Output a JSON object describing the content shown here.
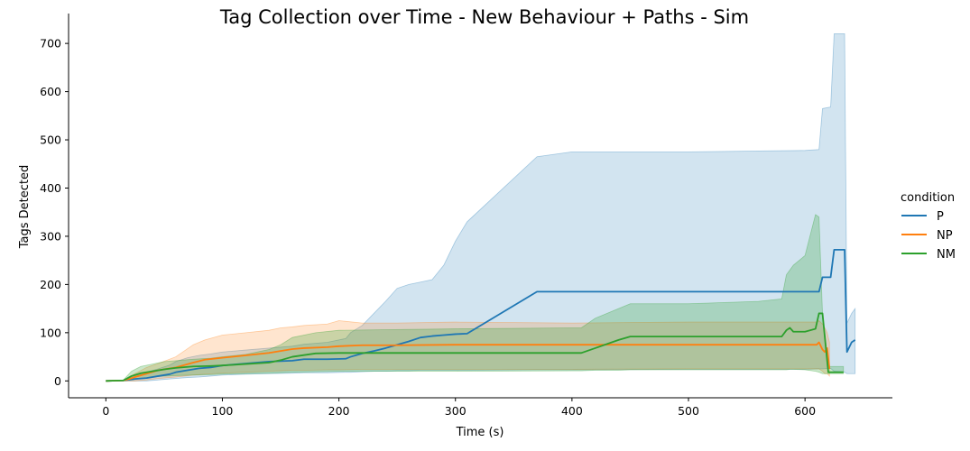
{
  "chart_data": {
    "type": "line",
    "title": "Tag Collection over Time - New Behaviour + Paths - Sim",
    "xlabel": "Time (s)",
    "ylabel": "Tags Detected",
    "xlim": [
      -32,
      675
    ],
    "ylim": [
      -35,
      762
    ],
    "xticks": [
      0,
      100,
      200,
      300,
      400,
      500,
      600
    ],
    "yticks": [
      0,
      100,
      200,
      300,
      400,
      500,
      600,
      700
    ],
    "grid": false,
    "legend": {
      "title": "condition",
      "position": "right"
    },
    "series": [
      {
        "name": "P",
        "color": "#1f77b4",
        "band_opacity": 0.2,
        "x": [
          0,
          15,
          25,
          35,
          45,
          55,
          60,
          70,
          80,
          90,
          100,
          120,
          140,
          160,
          170,
          190,
          206,
          210,
          220,
          230,
          240,
          250,
          260,
          270,
          280,
          290,
          300,
          310,
          370,
          400,
          500,
          600,
          612,
          615,
          622,
          625,
          634,
          636,
          640,
          643
        ],
        "y": [
          0,
          1,
          4,
          6,
          10,
          14,
          18,
          22,
          26,
          28,
          32,
          36,
          40,
          42,
          45,
          45,
          46,
          50,
          57,
          62,
          68,
          75,
          82,
          90,
          93,
          95,
          97,
          98,
          185,
          185,
          185,
          185,
          185,
          215,
          215,
          272,
          272,
          60,
          80,
          85
        ],
        "lower": [
          0,
          0,
          0,
          0,
          2,
          4,
          5,
          7,
          8,
          10,
          12,
          14,
          15,
          16,
          17,
          17,
          18,
          18,
          19,
          20,
          20,
          21,
          21,
          22,
          22,
          22,
          22,
          22,
          23,
          23,
          24,
          24,
          25,
          25,
          26,
          20,
          18,
          15,
          15,
          15
        ],
        "upper": [
          0,
          2,
          10,
          18,
          25,
          33,
          40,
          48,
          53,
          56,
          60,
          64,
          68,
          72,
          76,
          80,
          88,
          100,
          115,
          140,
          165,
          192,
          200,
          205,
          210,
          240,
          290,
          330,
          465,
          475,
          475,
          478,
          480,
          565,
          568,
          720,
          720,
          120,
          140,
          150
        ]
      },
      {
        "name": "NP",
        "color": "#ff7f0e",
        "band_opacity": 0.2,
        "x": [
          0,
          15,
          20,
          25,
          35,
          45,
          60,
          75,
          85,
          100,
          120,
          140,
          150,
          160,
          170,
          190,
          200,
          220,
          250,
          300,
          400,
          500,
          600,
          610,
          612,
          615,
          617,
          619,
          621
        ],
        "y": [
          0,
          1,
          4,
          8,
          15,
          22,
          28,
          38,
          44,
          48,
          53,
          58,
          62,
          66,
          68,
          70,
          72,
          74,
          74,
          75,
          75,
          75,
          75,
          75,
          80,
          65,
          60,
          68,
          25
        ],
        "lower": [
          0,
          0,
          0,
          0,
          2,
          5,
          8,
          12,
          14,
          16,
          18,
          20,
          21,
          22,
          22,
          23,
          23,
          24,
          24,
          24,
          24,
          25,
          25,
          25,
          25,
          20,
          15,
          15,
          10
        ],
        "upper": [
          0,
          2,
          8,
          15,
          28,
          36,
          50,
          75,
          85,
          95,
          100,
          105,
          110,
          112,
          115,
          118,
          125,
          120,
          120,
          122,
          120,
          122,
          122,
          122,
          125,
          118,
          110,
          100,
          80
        ]
      },
      {
        "name": "NM",
        "color": "#2ca02c",
        "band_opacity": 0.25,
        "x": [
          0,
          15,
          22,
          30,
          40,
          50,
          60,
          75,
          90,
          100,
          120,
          140,
          150,
          160,
          180,
          200,
          300,
          400,
          408,
          420,
          440,
          450,
          500,
          560,
          580,
          584,
          587,
          590,
          600,
          609,
          612,
          615,
          620,
          630,
          633
        ],
        "y": [
          0,
          1,
          10,
          16,
          20,
          24,
          27,
          30,
          31,
          32,
          35,
          38,
          43,
          50,
          57,
          58,
          58,
          58,
          58,
          68,
          85,
          92,
          92,
          92,
          92,
          105,
          110,
          102,
          102,
          108,
          140,
          140,
          18,
          18,
          18
        ],
        "lower": [
          0,
          0,
          2,
          5,
          8,
          10,
          11,
          12,
          13,
          14,
          15,
          16,
          17,
          18,
          19,
          20,
          20,
          21,
          21,
          22,
          22,
          23,
          23,
          23,
          23,
          23,
          24,
          24,
          23,
          20,
          18,
          15,
          15,
          15,
          15
        ],
        "upper": [
          0,
          2,
          20,
          30,
          35,
          40,
          42,
          45,
          47,
          50,
          55,
          65,
          75,
          90,
          100,
          105,
          108,
          110,
          110,
          130,
          150,
          160,
          160,
          165,
          170,
          220,
          230,
          240,
          260,
          345,
          340,
          140,
          30,
          30,
          30
        ]
      }
    ]
  }
}
